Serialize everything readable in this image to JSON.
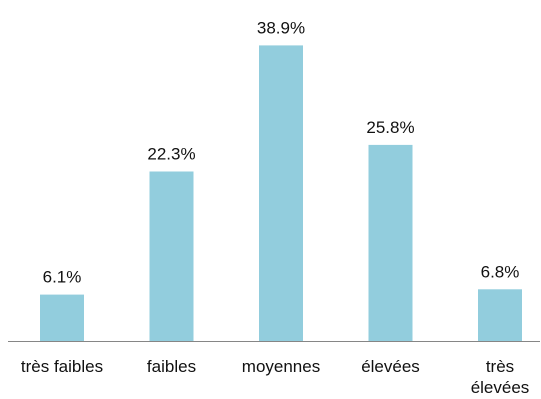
{
  "chart_data": {
    "type": "bar",
    "title": "",
    "xlabel": "",
    "ylabel": "",
    "categories": [
      "très faibles",
      "faibles",
      "moyennes",
      "élevées",
      "très élevées"
    ],
    "category_lines": [
      [
        "très faibles"
      ],
      [
        "faibles"
      ],
      [
        "moyennes"
      ],
      [
        "élevées"
      ],
      [
        "très",
        "élevées"
      ]
    ],
    "values": [
      6.1,
      22.3,
      38.9,
      25.8,
      6.8
    ],
    "value_labels": [
      "6.1%",
      "22.3%",
      "38.9%",
      "25.8%",
      "6.8%"
    ],
    "unit": "%",
    "ylim": [
      0,
      40
    ],
    "grid": false,
    "legend": "none",
    "colors": {
      "bar": "#92cddd",
      "axis": "#868686",
      "text": "#111111"
    }
  }
}
